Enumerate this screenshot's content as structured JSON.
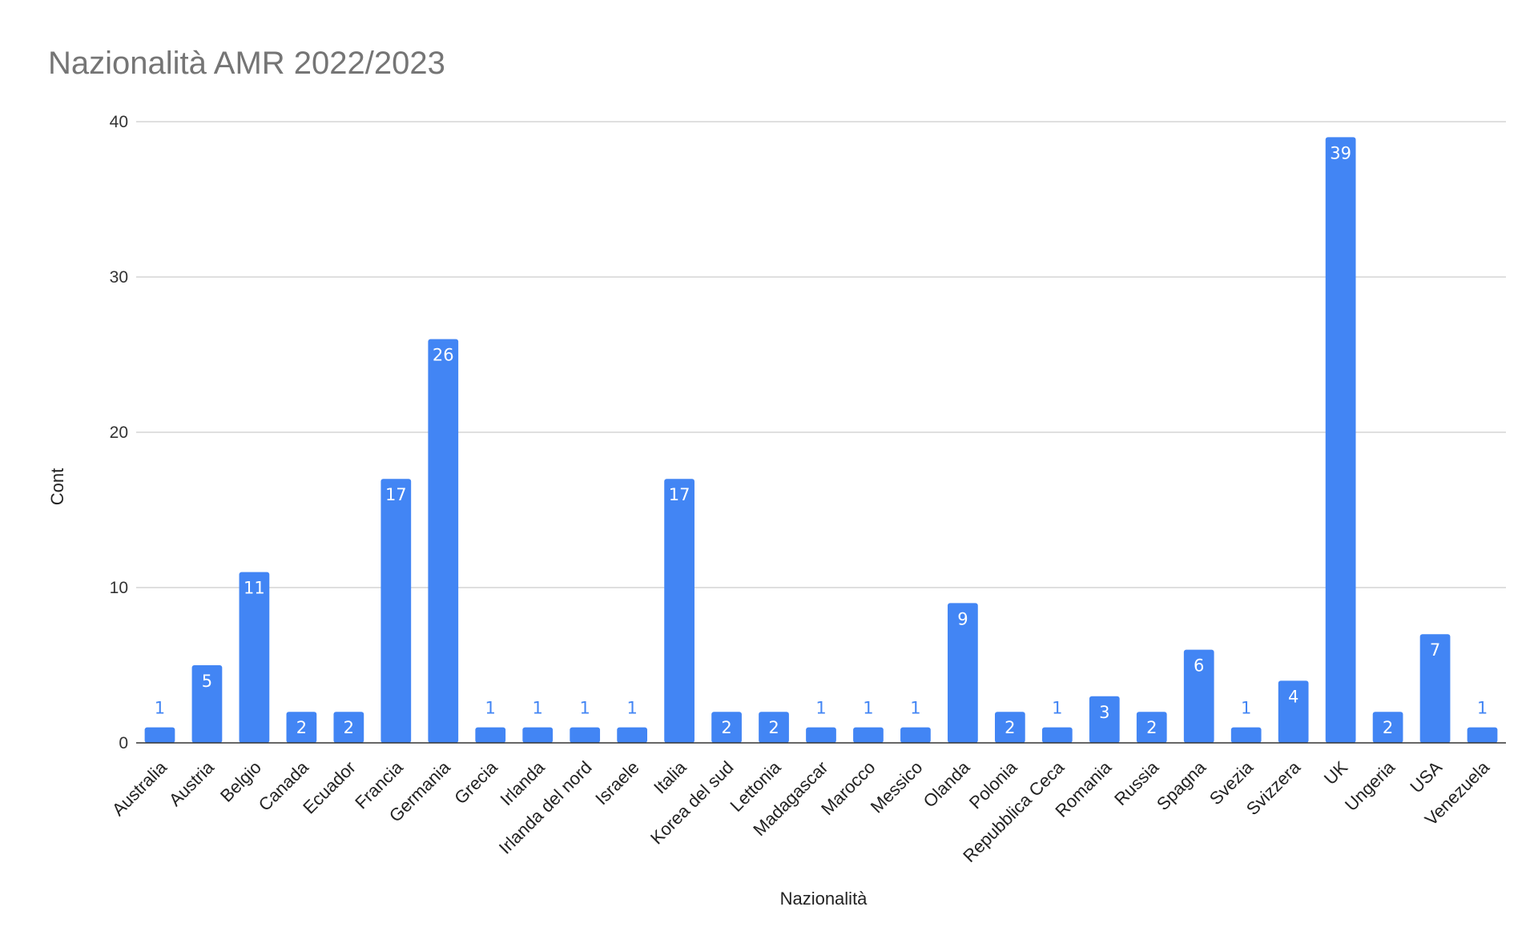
{
  "chart_data": {
    "type": "bar",
    "title": "Nazionalità AMR 2022/2023",
    "xlabel": "Nazionalità",
    "ylabel": "Cont",
    "ylim": [
      0,
      40
    ],
    "yticks": [
      0,
      10,
      20,
      30,
      40
    ],
    "grid": true,
    "legend": "none",
    "bar_color": "#4285f4",
    "categories": [
      "Australia",
      "Austria",
      "Belgio",
      "Canada",
      "Ecuador",
      "Francia",
      "Germania",
      "Grecia",
      "Irlanda",
      "Irlanda del nord",
      "Israele",
      "Italia",
      "Korea del sud",
      "Lettonia",
      "Madagascar",
      "Marocco",
      "Messico",
      "Olanda",
      "Polonia",
      "Repubblica Ceca",
      "Romania",
      "Russia",
      "Spagna",
      "Svezia",
      "Svizzera",
      "UK",
      "Ungeria",
      "USA",
      "Venezuela"
    ],
    "values": [
      1,
      5,
      11,
      2,
      2,
      17,
      26,
      1,
      1,
      1,
      1,
      17,
      2,
      2,
      1,
      1,
      1,
      9,
      2,
      1,
      3,
      2,
      6,
      1,
      4,
      39,
      2,
      7,
      1
    ]
  }
}
